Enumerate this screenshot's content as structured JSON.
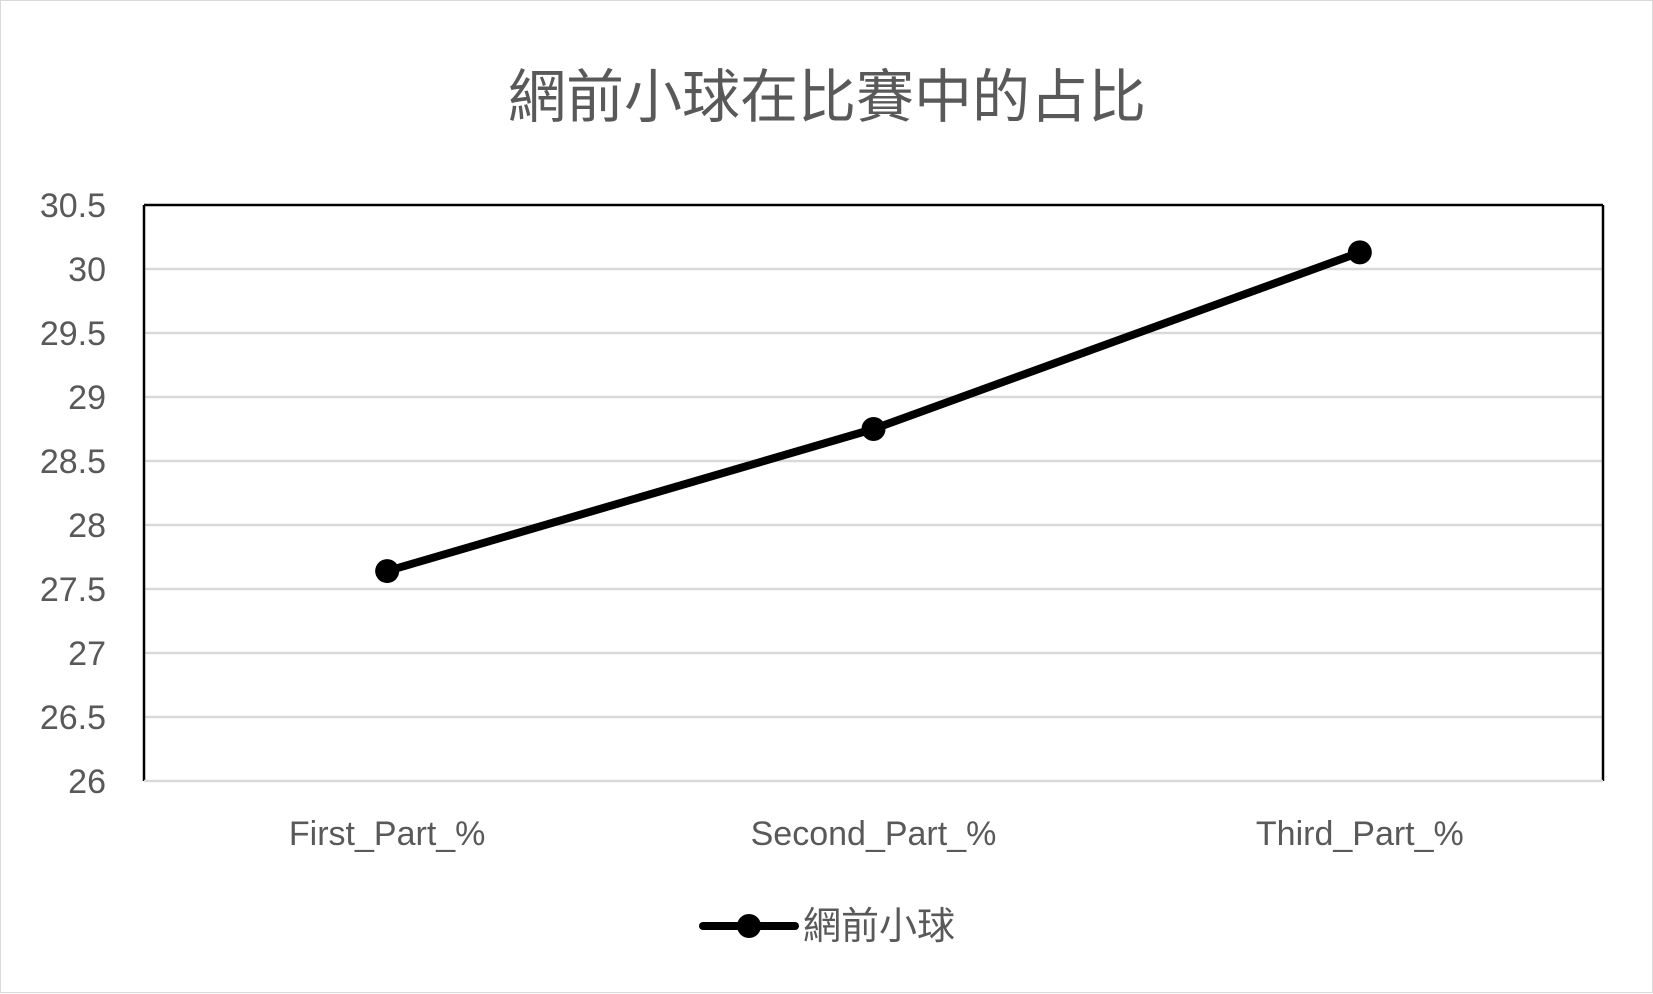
{
  "chart_data": {
    "type": "line",
    "title": "網前小球在比賽中的占比",
    "categories": [
      "First_Part_%",
      "Second_Part_%",
      "Third_Part_%"
    ],
    "series": [
      {
        "name": "網前小球",
        "values": [
          27.64,
          28.75,
          30.13
        ],
        "color": "#000000"
      }
    ],
    "ylim": [
      26,
      30.5
    ],
    "y_ticks": [
      "26",
      "26.5",
      "27",
      "27.5",
      "28",
      "28.5",
      "29",
      "29.5",
      "30",
      "30.5"
    ],
    "grid": true,
    "legend_position": "bottom",
    "colors": {
      "gridline": "#d9d9d9",
      "text": "#595959",
      "frame": "#000000"
    }
  }
}
